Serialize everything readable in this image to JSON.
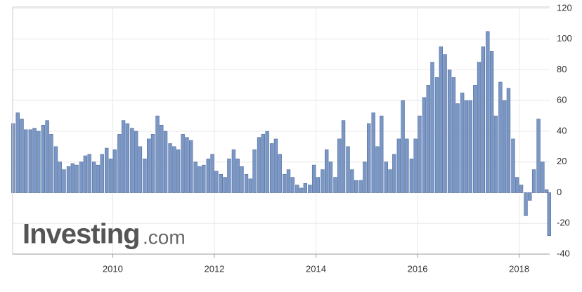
{
  "chart_data": {
    "type": "bar",
    "watermark": "Investing",
    "watermark_suffix": ".com",
    "color": "#7b97c5",
    "edge_color": "#4f6c9c",
    "grid": true,
    "y_axis_side": "right",
    "xlim": [
      2008.03,
      2018.6
    ],
    "xticks": [
      2010,
      2012,
      2014,
      2016,
      2018
    ],
    "ylim": [
      -40,
      120
    ],
    "yticks": [
      -40,
      -20,
      0,
      20,
      40,
      60,
      80,
      100,
      120
    ],
    "x": [
      2008.04,
      2008.13,
      2008.21,
      2008.29,
      2008.38,
      2008.46,
      2008.54,
      2008.63,
      2008.71,
      2008.79,
      2008.88,
      2008.96,
      2009.04,
      2009.13,
      2009.21,
      2009.29,
      2009.38,
      2009.46,
      2009.54,
      2009.63,
      2009.71,
      2009.79,
      2009.88,
      2009.96,
      2010.04,
      2010.13,
      2010.21,
      2010.29,
      2010.38,
      2010.46,
      2010.54,
      2010.63,
      2010.71,
      2010.79,
      2010.88,
      2010.96,
      2011.04,
      2011.13,
      2011.21,
      2011.29,
      2011.38,
      2011.46,
      2011.54,
      2011.63,
      2011.71,
      2011.79,
      2011.88,
      2011.96,
      2012.04,
      2012.13,
      2012.21,
      2012.29,
      2012.38,
      2012.46,
      2012.54,
      2012.63,
      2012.71,
      2012.79,
      2012.88,
      2012.96,
      2013.04,
      2013.13,
      2013.21,
      2013.29,
      2013.38,
      2013.46,
      2013.54,
      2013.63,
      2013.71,
      2013.79,
      2013.88,
      2013.96,
      2014.04,
      2014.13,
      2014.21,
      2014.29,
      2014.38,
      2014.46,
      2014.54,
      2014.63,
      2014.71,
      2014.79,
      2014.88,
      2014.96,
      2015.04,
      2015.13,
      2015.21,
      2015.29,
      2015.38,
      2015.46,
      2015.54,
      2015.63,
      2015.71,
      2015.79,
      2015.88,
      2015.96,
      2016.04,
      2016.13,
      2016.21,
      2016.29,
      2016.38,
      2016.46,
      2016.54,
      2016.63,
      2016.71,
      2016.79,
      2016.88,
      2016.96,
      2017.04,
      2017.13,
      2017.21,
      2017.29,
      2017.38,
      2017.46,
      2017.54,
      2017.63,
      2017.71,
      2017.79,
      2017.88,
      2017.96,
      2018.04,
      2018.13,
      2018.21,
      2018.29,
      2018.38,
      2018.46,
      2018.54,
      2018.59
    ],
    "values": [
      45,
      52,
      48,
      41,
      41,
      42,
      40,
      44,
      47,
      38,
      30,
      20,
      15,
      17,
      19,
      18,
      20,
      24,
      25,
      20,
      18,
      25,
      29,
      22,
      28,
      38,
      47,
      45,
      42,
      40,
      30,
      22,
      35,
      38,
      50,
      44,
      40,
      32,
      30,
      28,
      38,
      36,
      34,
      20,
      17,
      18,
      22,
      25,
      14,
      12,
      10,
      22,
      28,
      22,
      17,
      12,
      9,
      28,
      36,
      38,
      40,
      32,
      35,
      25,
      12,
      15,
      10,
      5,
      3,
      6,
      5,
      18,
      10,
      15,
      28,
      20,
      10,
      35,
      47,
      30,
      15,
      8,
      8,
      20,
      45,
      52,
      30,
      50,
      20,
      15,
      25,
      35,
      60,
      35,
      22,
      35,
      50,
      62,
      70,
      85,
      75,
      95,
      90,
      80,
      75,
      58,
      65,
      60,
      60,
      70,
      85,
      95,
      105,
      92,
      50,
      72,
      60,
      68,
      35,
      10,
      5,
      -15,
      -5,
      15,
      48,
      20,
      2,
      -28
    ]
  }
}
